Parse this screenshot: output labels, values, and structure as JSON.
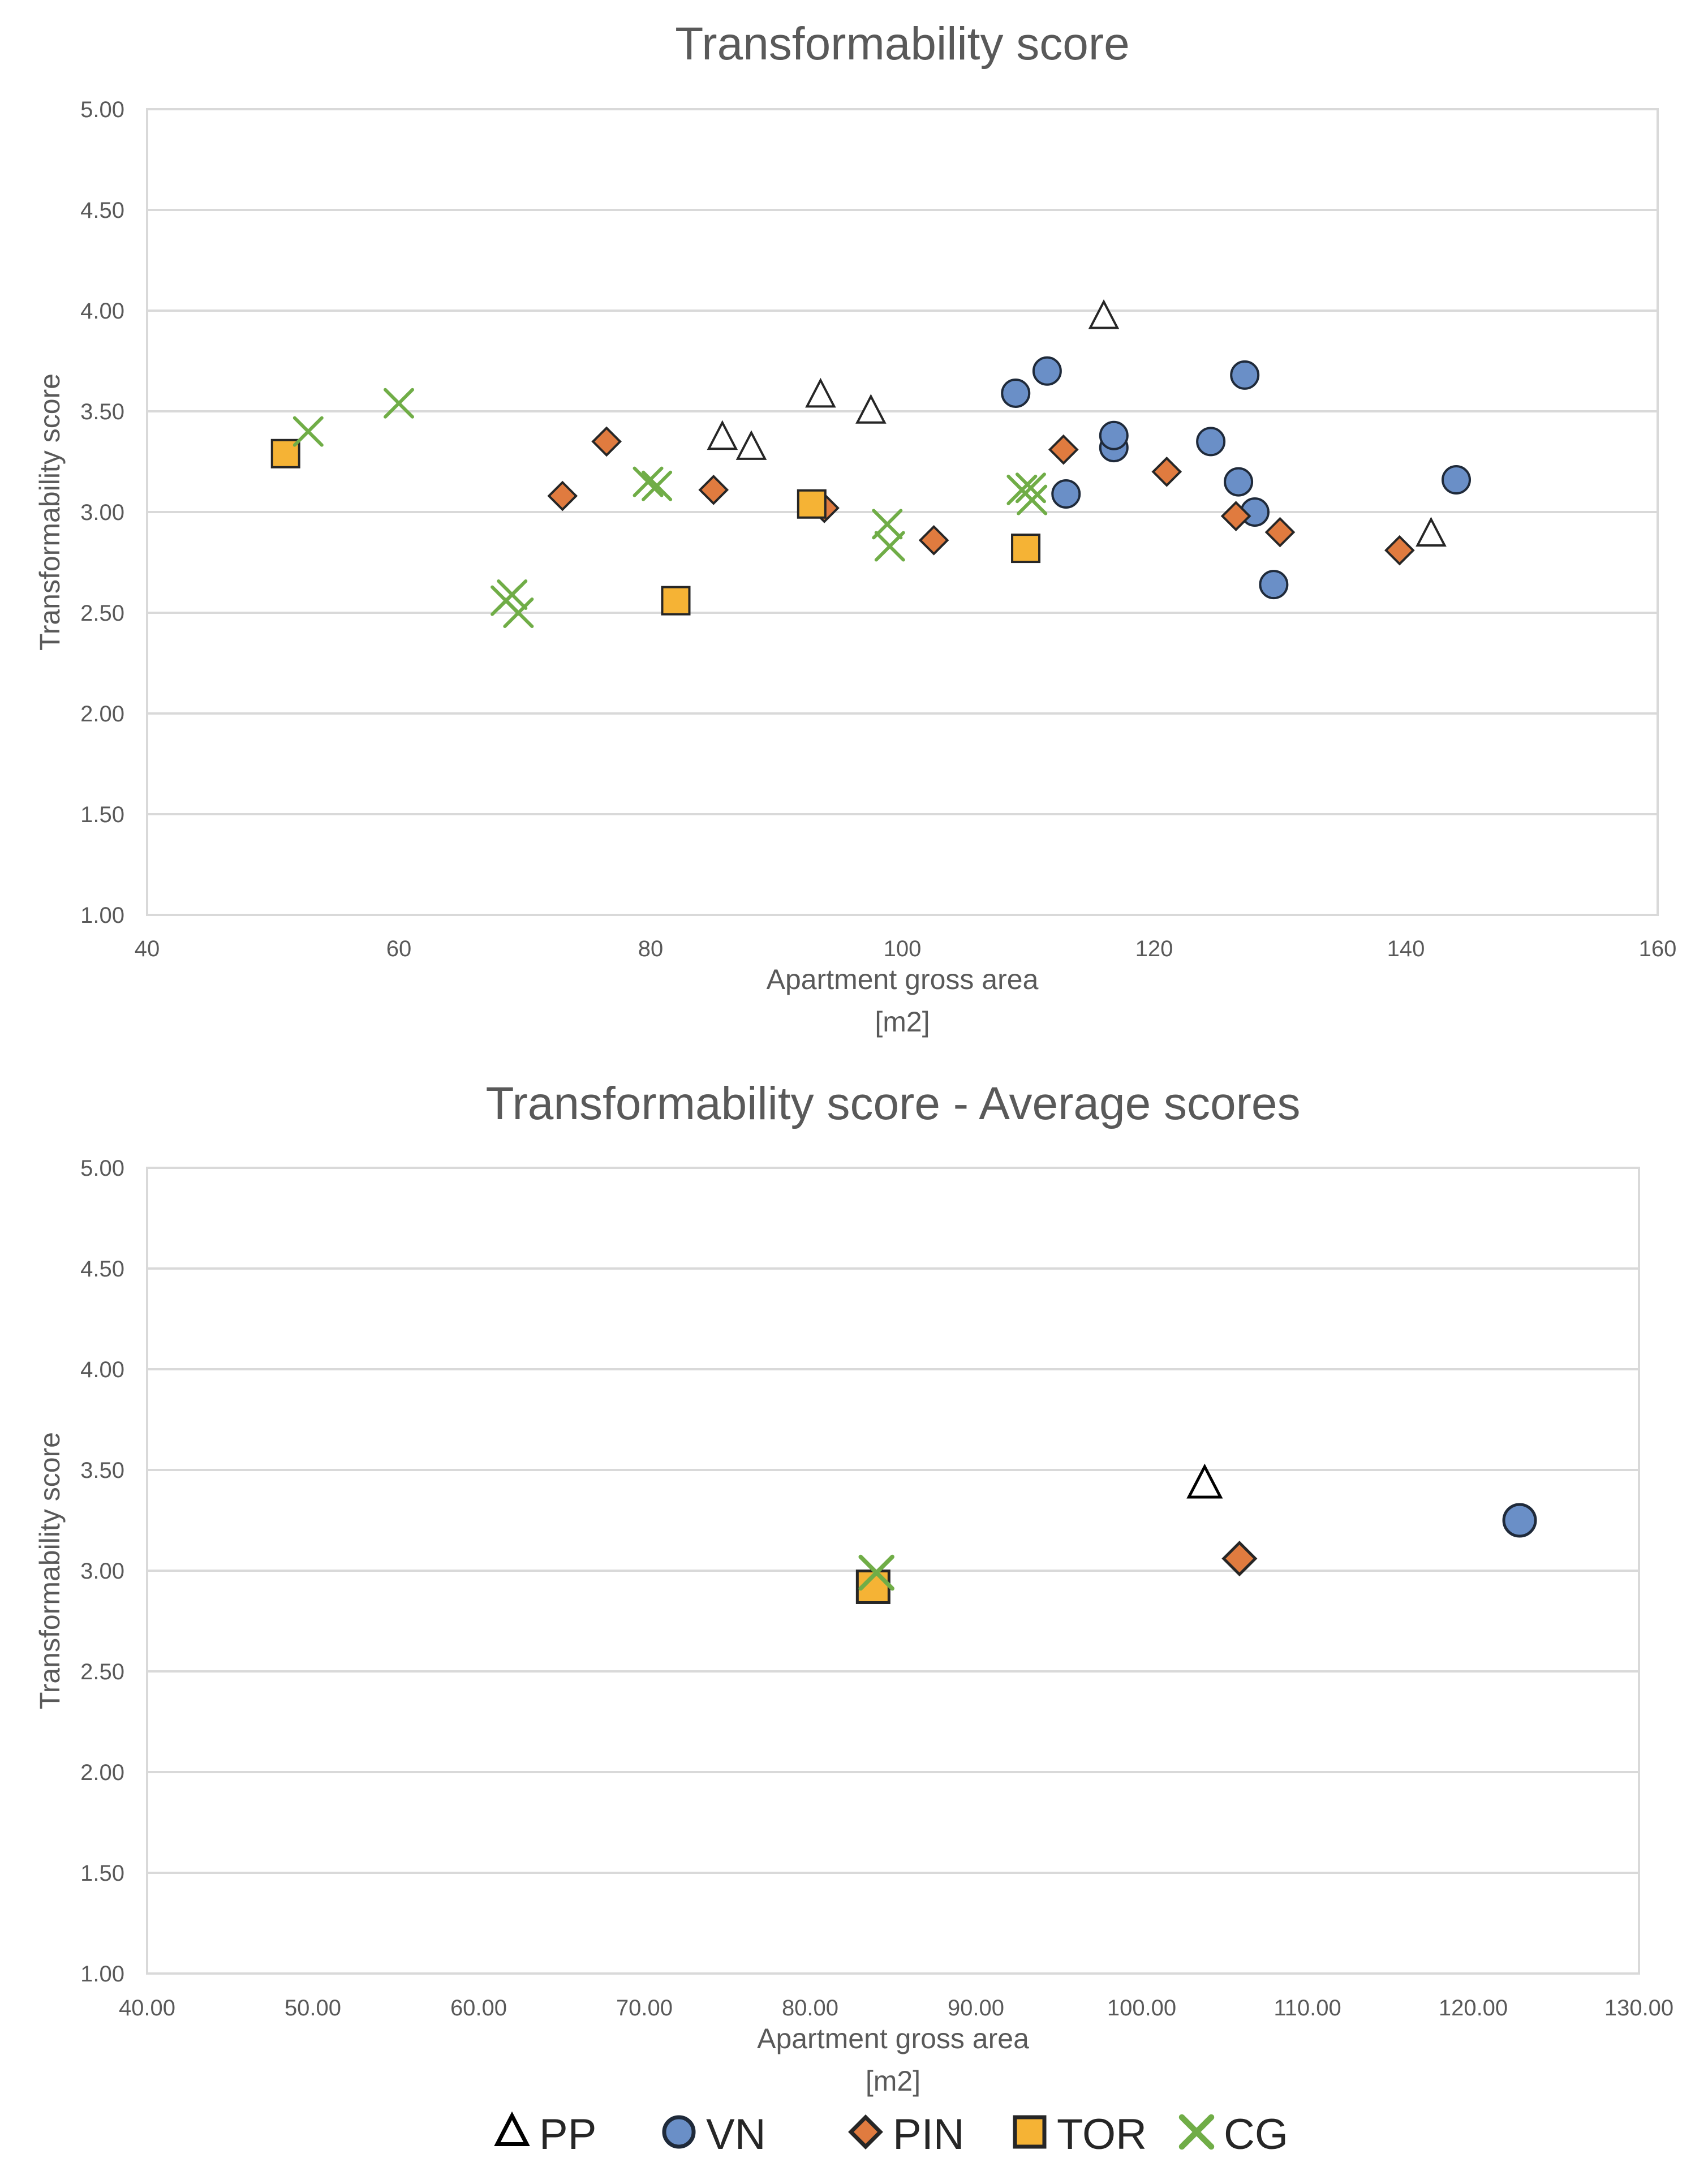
{
  "chart_data": [
    {
      "type": "scatter",
      "title": "Transformability score",
      "xlabel": "Apartment gross area",
      "xlabel_unit": "[m2]",
      "ylabel": "Transformability score",
      "xlim": [
        40,
        160
      ],
      "ylim": [
        1.0,
        5.0
      ],
      "xticks": [
        40,
        60,
        80,
        100,
        120,
        140,
        160
      ],
      "yticks": [
        1.0,
        1.5,
        2.0,
        2.5,
        3.0,
        3.5,
        4.0,
        4.5,
        5.0
      ],
      "x_decimals": 0,
      "y_decimals": 2,
      "grid": true,
      "series": [
        {
          "name": "PP",
          "marker": "triangle",
          "fill": "#ffffff",
          "stroke": "#262626",
          "points": [
            [
              85.7,
              3.37
            ],
            [
              88.0,
              3.32
            ],
            [
              93.5,
              3.58
            ],
            [
              97.5,
              3.5
            ],
            [
              116.0,
              3.97
            ],
            [
              142.0,
              2.89
            ]
          ]
        },
        {
          "name": "VN",
          "marker": "circle",
          "fill": "#6a8fc7",
          "stroke": "#1f2a3a",
          "points": [
            [
              109.0,
              3.59
            ],
            [
              111.5,
              3.7
            ],
            [
              113.0,
              3.09
            ],
            [
              116.8,
              3.32
            ],
            [
              116.8,
              3.38
            ],
            [
              124.5,
              3.35
            ],
            [
              126.7,
              3.15
            ],
            [
              127.2,
              3.68
            ],
            [
              128.0,
              3.0
            ],
            [
              129.5,
              2.64
            ],
            [
              144.0,
              3.16
            ]
          ]
        },
        {
          "name": "PIN",
          "marker": "diamond",
          "fill": "#e07b3f",
          "stroke": "#262626",
          "points": [
            [
              73.0,
              3.08
            ],
            [
              76.5,
              3.35
            ],
            [
              85.0,
              3.11
            ],
            [
              93.8,
              3.02
            ],
            [
              102.5,
              2.86
            ],
            [
              112.8,
              3.31
            ],
            [
              121.0,
              3.2
            ],
            [
              126.5,
              2.98
            ],
            [
              130.0,
              2.9
            ],
            [
              139.5,
              2.81
            ]
          ]
        },
        {
          "name": "TOR",
          "marker": "square",
          "fill": "#f5b335",
          "stroke": "#262626",
          "points": [
            [
              51.0,
              3.29
            ],
            [
              82.0,
              2.56
            ],
            [
              92.8,
              3.04
            ],
            [
              109.8,
              2.82
            ]
          ]
        },
        {
          "name": "CG",
          "marker": "x",
          "fill": "none",
          "stroke": "#70ad47",
          "points": [
            [
              52.8,
              3.4
            ],
            [
              60.0,
              3.54
            ],
            [
              68.5,
              2.56
            ],
            [
              69.0,
              2.59
            ],
            [
              69.5,
              2.5
            ],
            [
              79.8,
              3.15
            ],
            [
              80.5,
              3.13
            ],
            [
              98.8,
              2.94
            ],
            [
              99.0,
              2.83
            ],
            [
              109.5,
              3.11
            ],
            [
              110.2,
              3.12
            ],
            [
              110.3,
              3.06
            ]
          ]
        }
      ]
    },
    {
      "type": "scatter",
      "title": "Transformability score - Average scores",
      "xlabel": "Apartment gross area",
      "xlabel_unit": "[m2]",
      "ylabel": "Transformability score",
      "xlim": [
        40.0,
        130.0
      ],
      "ylim": [
        1.0,
        5.0
      ],
      "xticks": [
        40,
        50,
        60,
        70,
        80,
        90,
        100,
        110,
        120,
        130
      ],
      "yticks": [
        1.0,
        1.5,
        2.0,
        2.5,
        3.0,
        3.5,
        4.0,
        4.5,
        5.0
      ],
      "x_decimals": 2,
      "y_decimals": 2,
      "grid": true,
      "series": [
        {
          "name": "PP",
          "marker": "triangle",
          "fill": "#ffffff",
          "stroke": "#000000",
          "points": [
            [
              103.8,
              3.43
            ]
          ]
        },
        {
          "name": "VN",
          "marker": "circle",
          "fill": "#6a8fc7",
          "stroke": "#1f2a3a",
          "points": [
            [
              122.8,
              3.25
            ]
          ]
        },
        {
          "name": "PIN",
          "marker": "diamond",
          "fill": "#e07b3f",
          "stroke": "#262626",
          "points": [
            [
              105.9,
              3.06
            ]
          ]
        },
        {
          "name": "TOR",
          "marker": "square",
          "fill": "#f5b335",
          "stroke": "#262626",
          "points": [
            [
              83.8,
              2.92
            ]
          ]
        },
        {
          "name": "CG",
          "marker": "x",
          "fill": "none",
          "stroke": "#70ad47",
          "points": [
            [
              84.0,
              2.99
            ]
          ]
        }
      ]
    }
  ],
  "legend": {
    "placement": "bottom",
    "items": [
      {
        "label": "PP",
        "marker": "triangle",
        "fill": "#ffffff",
        "stroke": "#000000"
      },
      {
        "label": "VN",
        "marker": "circle",
        "fill": "#6a8fc7",
        "stroke": "#1f2a3a"
      },
      {
        "label": "PIN",
        "marker": "diamond",
        "fill": "#e07b3f",
        "stroke": "#262626"
      },
      {
        "label": "TOR",
        "marker": "square",
        "fill": "#f5b335",
        "stroke": "#262626"
      },
      {
        "label": "CG",
        "marker": "x",
        "fill": "none",
        "stroke": "#70ad47"
      }
    ]
  }
}
